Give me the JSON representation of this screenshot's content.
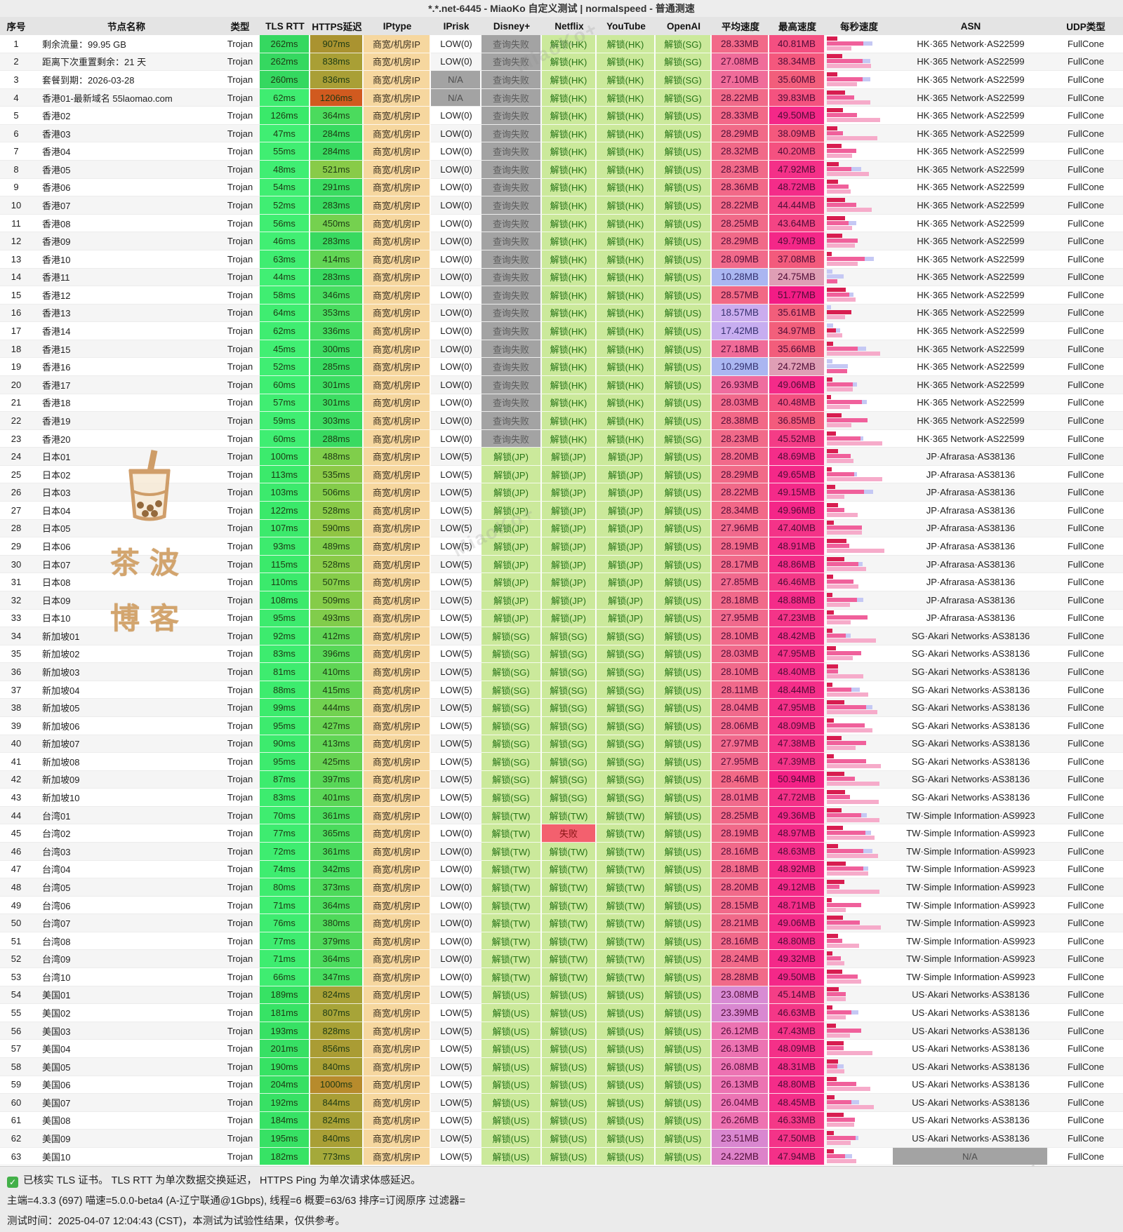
{
  "title": "*.*.net-6445 - MiaoKo 自定义测试 | normalspeed - 普通测速",
  "columns": [
    "序号",
    "节点名称",
    "类型",
    "TLS RTT",
    "HTTPS延迟",
    "IPtype",
    "IPrisk",
    "Disney+",
    "Netflix",
    "YouTube",
    "OpenAI",
    "平均速度",
    "最高速度",
    "每秒速度",
    "ASN",
    "UDP类型"
  ],
  "constants": {
    "type": "Trojan",
    "iptype": "商宽/机房IP",
    "udp": "FullCone",
    "ms_suffix": "ms",
    "mb_suffix": "MB"
  },
  "status_labels": {
    "query_fail": "查询失败",
    "fail": "失败",
    "unlock_prefix": "解锁"
  },
  "colors": {
    "unlock_bg": "#cbe99b",
    "unlock_text": "#267316",
    "queryfail_bg": "#a3a3a3",
    "fail_bg": "#f3606e",
    "iptype_bg": "#f6d79f",
    "na_bg": "#a3a3a3",
    "fast_green": "#3be96e",
    "slow_orange": "#d1591f",
    "avg_pink": "#f16b90",
    "max_magenta": "#f42b89",
    "low_speed_lavender": "#a9b6f1",
    "bar_red": "#d81d50",
    "bar_pink": "#f0609b",
    "bar_lightpink": "#f6abca",
    "bar_lavender": "#c5c8f4"
  },
  "watermark": {
    "line1": "茶波",
    "line2": "博客",
    "brand": "MiaoKo+"
  },
  "footer": {
    "line1": "已核实 TLS 证书。 TLS RTT 为单次数据交换延迟， HTTPS Ping 为单次请求体感延迟。",
    "line2": "主端=4.3.3 (697) 喵速=5.0.0-beta4 (A-辽宁联通@1Gbps), 线程=6 概要=63/63 排序=订阅原序 过滤器=",
    "line3": "测试时间：2025-04-07 12:04:43 (CST)，本测试为试验性结果，仅供参考。"
  },
  "rows": [
    {
      "i": 1,
      "name": "剩余流量：99.95 GB",
      "tls": 262,
      "https": 907,
      "risk": "LOW(0)",
      "dis": "查询失败",
      "nf": "解锁(HK)",
      "yt": "解锁(HK)",
      "oai": "解锁(SG)",
      "avg": 28.33,
      "max": 40.81,
      "asn": "HK·365 Network·AS22599"
    },
    {
      "i": 2,
      "name": "距离下次重置剩余：21 天",
      "tls": 262,
      "https": 838,
      "risk": "LOW(0)",
      "dis": "查询失败",
      "nf": "解锁(HK)",
      "yt": "解锁(HK)",
      "oai": "解锁(SG)",
      "avg": 27.08,
      "max": 38.34,
      "asn": "HK·365 Network·AS22599"
    },
    {
      "i": 3,
      "name": "套餐到期：2026-03-28",
      "tls": 260,
      "https": 836,
      "risk": "N/A",
      "dis": "查询失败",
      "nf": "解锁(HK)",
      "yt": "解锁(HK)",
      "oai": "解锁(SG)",
      "avg": 27.1,
      "max": 35.6,
      "asn": "HK·365 Network·AS22599"
    },
    {
      "i": 4,
      "name": "香港01-最新域名 55laomao.com",
      "tls": 62,
      "https": 1206,
      "risk": "N/A",
      "dis": "查询失败",
      "nf": "解锁(HK)",
      "yt": "解锁(HK)",
      "oai": "解锁(SG)",
      "avg": 28.22,
      "max": 39.83,
      "asn": "HK·365 Network·AS22599"
    },
    {
      "i": 5,
      "name": "香港02",
      "tls": 126,
      "https": 364,
      "risk": "LOW(0)",
      "dis": "查询失败",
      "nf": "解锁(HK)",
      "yt": "解锁(HK)",
      "oai": "解锁(US)",
      "avg": 28.33,
      "max": 49.5,
      "asn": "HK·365 Network·AS22599"
    },
    {
      "i": 6,
      "name": "香港03",
      "tls": 47,
      "https": 284,
      "risk": "LOW(0)",
      "dis": "查询失败",
      "nf": "解锁(HK)",
      "yt": "解锁(HK)",
      "oai": "解锁(US)",
      "avg": 28.29,
      "max": 38.09,
      "asn": "HK·365 Network·AS22599"
    },
    {
      "i": 7,
      "name": "香港04",
      "tls": 55,
      "https": 284,
      "risk": "LOW(0)",
      "dis": "查询失败",
      "nf": "解锁(HK)",
      "yt": "解锁(HK)",
      "oai": "解锁(US)",
      "avg": 28.32,
      "max": 40.2,
      "asn": "HK·365 Network·AS22599"
    },
    {
      "i": 8,
      "name": "香港05",
      "tls": 48,
      "https": 521,
      "risk": "LOW(0)",
      "dis": "查询失败",
      "nf": "解锁(HK)",
      "yt": "解锁(HK)",
      "oai": "解锁(US)",
      "avg": 28.23,
      "max": 47.92,
      "asn": "HK·365 Network·AS22599"
    },
    {
      "i": 9,
      "name": "香港06",
      "tls": 54,
      "https": 291,
      "risk": "LOW(0)",
      "dis": "查询失败",
      "nf": "解锁(HK)",
      "yt": "解锁(HK)",
      "oai": "解锁(US)",
      "avg": 28.36,
      "max": 48.72,
      "asn": "HK·365 Network·AS22599"
    },
    {
      "i": 10,
      "name": "香港07",
      "tls": 52,
      "https": 283,
      "risk": "LOW(0)",
      "dis": "查询失败",
      "nf": "解锁(HK)",
      "yt": "解锁(HK)",
      "oai": "解锁(US)",
      "avg": 28.22,
      "max": 44.44,
      "asn": "HK·365 Network·AS22599"
    },
    {
      "i": 11,
      "name": "香港08",
      "tls": 56,
      "https": 450,
      "risk": "LOW(0)",
      "dis": "查询失败",
      "nf": "解锁(HK)",
      "yt": "解锁(HK)",
      "oai": "解锁(US)",
      "avg": 28.25,
      "max": 43.64,
      "asn": "HK·365 Network·AS22599"
    },
    {
      "i": 12,
      "name": "香港09",
      "tls": 46,
      "https": 283,
      "risk": "LOW(0)",
      "dis": "查询失败",
      "nf": "解锁(HK)",
      "yt": "解锁(HK)",
      "oai": "解锁(US)",
      "avg": 28.29,
      "max": 49.79,
      "asn": "HK·365 Network·AS22599"
    },
    {
      "i": 13,
      "name": "香港10",
      "tls": 63,
      "https": 414,
      "risk": "LOW(0)",
      "dis": "查询失败",
      "nf": "解锁(HK)",
      "yt": "解锁(HK)",
      "oai": "解锁(US)",
      "avg": 28.09,
      "max": 37.08,
      "asn": "HK·365 Network·AS22599"
    },
    {
      "i": 14,
      "name": "香港11",
      "tls": 44,
      "https": 283,
      "risk": "LOW(0)",
      "dis": "查询失败",
      "nf": "解锁(HK)",
      "yt": "解锁(HK)",
      "oai": "解锁(US)",
      "avg": 10.28,
      "max": 24.75,
      "asn": "HK·365 Network·AS22599"
    },
    {
      "i": 15,
      "name": "香港12",
      "tls": 58,
      "https": 346,
      "risk": "LOW(0)",
      "dis": "查询失败",
      "nf": "解锁(HK)",
      "yt": "解锁(HK)",
      "oai": "解锁(US)",
      "avg": 28.57,
      "max": 51.77,
      "asn": "HK·365 Network·AS22599"
    },
    {
      "i": 16,
      "name": "香港13",
      "tls": 64,
      "https": 353,
      "risk": "LOW(0)",
      "dis": "查询失败",
      "nf": "解锁(HK)",
      "yt": "解锁(HK)",
      "oai": "解锁(US)",
      "avg": 18.57,
      "max": 35.61,
      "asn": "HK·365 Network·AS22599"
    },
    {
      "i": 17,
      "name": "香港14",
      "tls": 62,
      "https": 336,
      "risk": "LOW(0)",
      "dis": "查询失败",
      "nf": "解锁(HK)",
      "yt": "解锁(HK)",
      "oai": "解锁(US)",
      "avg": 17.42,
      "max": 34.97,
      "asn": "HK·365 Network·AS22599"
    },
    {
      "i": 18,
      "name": "香港15",
      "tls": 45,
      "https": 300,
      "risk": "LOW(0)",
      "dis": "查询失败",
      "nf": "解锁(HK)",
      "yt": "解锁(HK)",
      "oai": "解锁(US)",
      "avg": 27.18,
      "max": 35.66,
      "asn": "HK·365 Network·AS22599"
    },
    {
      "i": 19,
      "name": "香港16",
      "tls": 52,
      "https": 285,
      "risk": "LOW(0)",
      "dis": "查询失败",
      "nf": "解锁(HK)",
      "yt": "解锁(HK)",
      "oai": "解锁(US)",
      "avg": 10.29,
      "max": 24.72,
      "asn": "HK·365 Network·AS22599"
    },
    {
      "i": 20,
      "name": "香港17",
      "tls": 60,
      "https": 301,
      "risk": "LOW(0)",
      "dis": "查询失败",
      "nf": "解锁(HK)",
      "yt": "解锁(HK)",
      "oai": "解锁(US)",
      "avg": 26.93,
      "max": 49.06,
      "asn": "HK·365 Network·AS22599"
    },
    {
      "i": 21,
      "name": "香港18",
      "tls": 57,
      "https": 301,
      "risk": "LOW(0)",
      "dis": "查询失败",
      "nf": "解锁(HK)",
      "yt": "解锁(HK)",
      "oai": "解锁(US)",
      "avg": 28.03,
      "max": 40.48,
      "asn": "HK·365 Network·AS22599"
    },
    {
      "i": 22,
      "name": "香港19",
      "tls": 59,
      "https": 303,
      "risk": "LOW(0)",
      "dis": "查询失败",
      "nf": "解锁(HK)",
      "yt": "解锁(HK)",
      "oai": "解锁(US)",
      "avg": 28.38,
      "max": 36.85,
      "asn": "HK·365 Network·AS22599"
    },
    {
      "i": 23,
      "name": "香港20",
      "tls": 60,
      "https": 288,
      "risk": "LOW(0)",
      "dis": "查询失败",
      "nf": "解锁(HK)",
      "yt": "解锁(HK)",
      "oai": "解锁(SG)",
      "avg": 28.23,
      "max": 45.52,
      "asn": "HK·365 Network·AS22599"
    },
    {
      "i": 24,
      "name": "日本01",
      "tls": 100,
      "https": 488,
      "risk": "LOW(5)",
      "dis": "解锁(JP)",
      "nf": "解锁(JP)",
      "yt": "解锁(JP)",
      "oai": "解锁(US)",
      "avg": 28.2,
      "max": 48.69,
      "asn": "JP·Afrarasa·AS38136"
    },
    {
      "i": 25,
      "name": "日本02",
      "tls": 113,
      "https": 535,
      "risk": "LOW(5)",
      "dis": "解锁(JP)",
      "nf": "解锁(JP)",
      "yt": "解锁(JP)",
      "oai": "解锁(US)",
      "avg": 28.29,
      "max": 49.65,
      "asn": "JP·Afrarasa·AS38136"
    },
    {
      "i": 26,
      "name": "日本03",
      "tls": 103,
      "https": 506,
      "risk": "LOW(5)",
      "dis": "解锁(JP)",
      "nf": "解锁(JP)",
      "yt": "解锁(JP)",
      "oai": "解锁(US)",
      "avg": 28.22,
      "max": 49.15,
      "asn": "JP·Afrarasa·AS38136"
    },
    {
      "i": 27,
      "name": "日本04",
      "tls": 122,
      "https": 528,
      "risk": "LOW(5)",
      "dis": "解锁(JP)",
      "nf": "解锁(JP)",
      "yt": "解锁(JP)",
      "oai": "解锁(US)",
      "avg": 28.34,
      "max": 49.96,
      "asn": "JP·Afrarasa·AS38136"
    },
    {
      "i": 28,
      "name": "日本05",
      "tls": 107,
      "https": 590,
      "risk": "LOW(5)",
      "dis": "解锁(JP)",
      "nf": "解锁(JP)",
      "yt": "解锁(JP)",
      "oai": "解锁(US)",
      "avg": 27.96,
      "max": 47.4,
      "asn": "JP·Afrarasa·AS38136"
    },
    {
      "i": 29,
      "name": "日本06",
      "tls": 93,
      "https": 489,
      "risk": "LOW(5)",
      "dis": "解锁(JP)",
      "nf": "解锁(JP)",
      "yt": "解锁(JP)",
      "oai": "解锁(US)",
      "avg": 28.19,
      "max": 48.91,
      "asn": "JP·Afrarasa·AS38136"
    },
    {
      "i": 30,
      "name": "日本07",
      "tls": 115,
      "https": 528,
      "risk": "LOW(5)",
      "dis": "解锁(JP)",
      "nf": "解锁(JP)",
      "yt": "解锁(JP)",
      "oai": "解锁(US)",
      "avg": 28.17,
      "max": 48.86,
      "asn": "JP·Afrarasa·AS38136"
    },
    {
      "i": 31,
      "name": "日本08",
      "tls": 110,
      "https": 507,
      "risk": "LOW(5)",
      "dis": "解锁(JP)",
      "nf": "解锁(JP)",
      "yt": "解锁(JP)",
      "oai": "解锁(US)",
      "avg": 27.85,
      "max": 46.46,
      "asn": "JP·Afrarasa·AS38136"
    },
    {
      "i": 32,
      "name": "日本09",
      "tls": 108,
      "https": 509,
      "risk": "LOW(5)",
      "dis": "解锁(JP)",
      "nf": "解锁(JP)",
      "yt": "解锁(JP)",
      "oai": "解锁(US)",
      "avg": 28.18,
      "max": 48.88,
      "asn": "JP·Afrarasa·AS38136"
    },
    {
      "i": 33,
      "name": "日本10",
      "tls": 95,
      "https": 493,
      "risk": "LOW(5)",
      "dis": "解锁(JP)",
      "nf": "解锁(JP)",
      "yt": "解锁(JP)",
      "oai": "解锁(US)",
      "avg": 27.95,
      "max": 47.23,
      "asn": "JP·Afrarasa·AS38136"
    },
    {
      "i": 34,
      "name": "新加坡01",
      "tls": 92,
      "https": 412,
      "risk": "LOW(5)",
      "dis": "解锁(SG)",
      "nf": "解锁(SG)",
      "yt": "解锁(SG)",
      "oai": "解锁(US)",
      "avg": 28.1,
      "max": 48.42,
      "asn": "SG·Akari Networks·AS38136"
    },
    {
      "i": 35,
      "name": "新加坡02",
      "tls": 83,
      "https": 396,
      "risk": "LOW(5)",
      "dis": "解锁(SG)",
      "nf": "解锁(SG)",
      "yt": "解锁(SG)",
      "oai": "解锁(US)",
      "avg": 28.03,
      "max": 47.95,
      "asn": "SG·Akari Networks·AS38136"
    },
    {
      "i": 36,
      "name": "新加坡03",
      "tls": 81,
      "https": 410,
      "risk": "LOW(5)",
      "dis": "解锁(SG)",
      "nf": "解锁(SG)",
      "yt": "解锁(SG)",
      "oai": "解锁(US)",
      "avg": 28.1,
      "max": 48.4,
      "asn": "SG·Akari Networks·AS38136"
    },
    {
      "i": 37,
      "name": "新加坡04",
      "tls": 88,
      "https": 415,
      "risk": "LOW(5)",
      "dis": "解锁(SG)",
      "nf": "解锁(SG)",
      "yt": "解锁(SG)",
      "oai": "解锁(US)",
      "avg": 28.11,
      "max": 48.44,
      "asn": "SG·Akari Networks·AS38136"
    },
    {
      "i": 38,
      "name": "新加坡05",
      "tls": 99,
      "https": 444,
      "risk": "LOW(5)",
      "dis": "解锁(SG)",
      "nf": "解锁(SG)",
      "yt": "解锁(SG)",
      "oai": "解锁(US)",
      "avg": 28.04,
      "max": 47.95,
      "asn": "SG·Akari Networks·AS38136"
    },
    {
      "i": 39,
      "name": "新加坡06",
      "tls": 95,
      "https": 427,
      "risk": "LOW(5)",
      "dis": "解锁(SG)",
      "nf": "解锁(SG)",
      "yt": "解锁(SG)",
      "oai": "解锁(US)",
      "avg": 28.06,
      "max": 48.09,
      "asn": "SG·Akari Networks·AS38136"
    },
    {
      "i": 40,
      "name": "新加坡07",
      "tls": 90,
      "https": 413,
      "risk": "LOW(5)",
      "dis": "解锁(SG)",
      "nf": "解锁(SG)",
      "yt": "解锁(SG)",
      "oai": "解锁(US)",
      "avg": 27.97,
      "max": 47.38,
      "asn": "SG·Akari Networks·AS38136"
    },
    {
      "i": 41,
      "name": "新加坡08",
      "tls": 95,
      "https": 425,
      "risk": "LOW(5)",
      "dis": "解锁(SG)",
      "nf": "解锁(SG)",
      "yt": "解锁(SG)",
      "oai": "解锁(US)",
      "avg": 27.95,
      "max": 47.39,
      "asn": "SG·Akari Networks·AS38136"
    },
    {
      "i": 42,
      "name": "新加坡09",
      "tls": 87,
      "https": 397,
      "risk": "LOW(5)",
      "dis": "解锁(SG)",
      "nf": "解锁(SG)",
      "yt": "解锁(SG)",
      "oai": "解锁(US)",
      "avg": 28.46,
      "max": 50.94,
      "asn": "SG·Akari Networks·AS38136"
    },
    {
      "i": 43,
      "name": "新加坡10",
      "tls": 83,
      "https": 401,
      "risk": "LOW(5)",
      "dis": "解锁(SG)",
      "nf": "解锁(SG)",
      "yt": "解锁(SG)",
      "oai": "解锁(US)",
      "avg": 28.01,
      "max": 47.72,
      "asn": "SG·Akari Networks·AS38136"
    },
    {
      "i": 44,
      "name": "台湾01",
      "tls": 70,
      "https": 361,
      "risk": "LOW(0)",
      "dis": "解锁(TW)",
      "nf": "解锁(TW)",
      "yt": "解锁(TW)",
      "oai": "解锁(US)",
      "avg": 28.25,
      "max": 49.36,
      "asn": "TW·Simple Information·AS9923"
    },
    {
      "i": 45,
      "name": "台湾02",
      "tls": 77,
      "https": 365,
      "risk": "LOW(0)",
      "dis": "解锁(TW)",
      "nf": "失败",
      "yt": "解锁(TW)",
      "oai": "解锁(US)",
      "avg": 28.19,
      "max": 48.97,
      "asn": "TW·Simple Information·AS9923"
    },
    {
      "i": 46,
      "name": "台湾03",
      "tls": 72,
      "https": 361,
      "risk": "LOW(0)",
      "dis": "解锁(TW)",
      "nf": "解锁(TW)",
      "yt": "解锁(TW)",
      "oai": "解锁(US)",
      "avg": 28.16,
      "max": 48.63,
      "asn": "TW·Simple Information·AS9923"
    },
    {
      "i": 47,
      "name": "台湾04",
      "tls": 74,
      "https": 342,
      "risk": "LOW(0)",
      "dis": "解锁(TW)",
      "nf": "解锁(TW)",
      "yt": "解锁(TW)",
      "oai": "解锁(US)",
      "avg": 28.18,
      "max": 48.92,
      "asn": "TW·Simple Information·AS9923"
    },
    {
      "i": 48,
      "name": "台湾05",
      "tls": 80,
      "https": 373,
      "risk": "LOW(0)",
      "dis": "解锁(TW)",
      "nf": "解锁(TW)",
      "yt": "解锁(TW)",
      "oai": "解锁(US)",
      "avg": 28.2,
      "max": 49.12,
      "asn": "TW·Simple Information·AS9923"
    },
    {
      "i": 49,
      "name": "台湾06",
      "tls": 71,
      "https": 364,
      "risk": "LOW(0)",
      "dis": "解锁(TW)",
      "nf": "解锁(TW)",
      "yt": "解锁(TW)",
      "oai": "解锁(US)",
      "avg": 28.15,
      "max": 48.71,
      "asn": "TW·Simple Information·AS9923"
    },
    {
      "i": 50,
      "name": "台湾07",
      "tls": 76,
      "https": 380,
      "risk": "LOW(0)",
      "dis": "解锁(TW)",
      "nf": "解锁(TW)",
      "yt": "解锁(TW)",
      "oai": "解锁(US)",
      "avg": 28.21,
      "max": 49.06,
      "asn": "TW·Simple Information·AS9923"
    },
    {
      "i": 51,
      "name": "台湾08",
      "tls": 77,
      "https": 379,
      "risk": "LOW(0)",
      "dis": "解锁(TW)",
      "nf": "解锁(TW)",
      "yt": "解锁(TW)",
      "oai": "解锁(US)",
      "avg": 28.16,
      "max": 48.8,
      "asn": "TW·Simple Information·AS9923"
    },
    {
      "i": 52,
      "name": "台湾09",
      "tls": 71,
      "https": 364,
      "risk": "LOW(0)",
      "dis": "解锁(TW)",
      "nf": "解锁(TW)",
      "yt": "解锁(TW)",
      "oai": "解锁(US)",
      "avg": 28.24,
      "max": 49.32,
      "asn": "TW·Simple Information·AS9923"
    },
    {
      "i": 53,
      "name": "台湾10",
      "tls": 66,
      "https": 347,
      "risk": "LOW(0)",
      "dis": "解锁(TW)",
      "nf": "解锁(TW)",
      "yt": "解锁(TW)",
      "oai": "解锁(US)",
      "avg": 28.28,
      "max": 49.5,
      "asn": "TW·Simple Information·AS9923"
    },
    {
      "i": 54,
      "name": "美国01",
      "tls": 189,
      "https": 824,
      "risk": "LOW(5)",
      "dis": "解锁(US)",
      "nf": "解锁(US)",
      "yt": "解锁(US)",
      "oai": "解锁(US)",
      "avg": 23.08,
      "max": 45.14,
      "asn": "US·Akari Networks·AS38136"
    },
    {
      "i": 55,
      "name": "美国02",
      "tls": 181,
      "https": 807,
      "risk": "LOW(5)",
      "dis": "解锁(US)",
      "nf": "解锁(US)",
      "yt": "解锁(US)",
      "oai": "解锁(US)",
      "avg": 23.39,
      "max": 46.63,
      "asn": "US·Akari Networks·AS38136"
    },
    {
      "i": 56,
      "name": "美国03",
      "tls": 193,
      "https": 828,
      "risk": "LOW(5)",
      "dis": "解锁(US)",
      "nf": "解锁(US)",
      "yt": "解锁(US)",
      "oai": "解锁(US)",
      "avg": 26.12,
      "max": 47.43,
      "asn": "US·Akari Networks·AS38136"
    },
    {
      "i": 57,
      "name": "美国04",
      "tls": 201,
      "https": 856,
      "risk": "LOW(5)",
      "dis": "解锁(US)",
      "nf": "解锁(US)",
      "yt": "解锁(US)",
      "oai": "解锁(US)",
      "avg": 26.13,
      "max": 48.09,
      "asn": "US·Akari Networks·AS38136"
    },
    {
      "i": 58,
      "name": "美国05",
      "tls": 190,
      "https": 840,
      "risk": "LOW(5)",
      "dis": "解锁(US)",
      "nf": "解锁(US)",
      "yt": "解锁(US)",
      "oai": "解锁(US)",
      "avg": 26.08,
      "max": 48.31,
      "asn": "US·Akari Networks·AS38136"
    },
    {
      "i": 59,
      "name": "美国06",
      "tls": 204,
      "https": 1000,
      "risk": "LOW(5)",
      "dis": "解锁(US)",
      "nf": "解锁(US)",
      "yt": "解锁(US)",
      "oai": "解锁(US)",
      "avg": 26.13,
      "max": 48.8,
      "asn": "US·Akari Networks·AS38136"
    },
    {
      "i": 60,
      "name": "美国07",
      "tls": 192,
      "https": 844,
      "risk": "LOW(5)",
      "dis": "解锁(US)",
      "nf": "解锁(US)",
      "yt": "解锁(US)",
      "oai": "解锁(US)",
      "avg": 26.04,
      "max": 48.45,
      "asn": "US·Akari Networks·AS38136"
    },
    {
      "i": 61,
      "name": "美国08",
      "tls": 184,
      "https": 824,
      "risk": "LOW(5)",
      "dis": "解锁(US)",
      "nf": "解锁(US)",
      "yt": "解锁(US)",
      "oai": "解锁(US)",
      "avg": 26.26,
      "max": 46.33,
      "asn": "US·Akari Networks·AS38136"
    },
    {
      "i": 62,
      "name": "美国09",
      "tls": 195,
      "https": 840,
      "risk": "LOW(5)",
      "dis": "解锁(US)",
      "nf": "解锁(US)",
      "yt": "解锁(US)",
      "oai": "解锁(US)",
      "avg": 23.51,
      "max": 47.5,
      "asn": "US·Akari Networks·AS38136"
    },
    {
      "i": 63,
      "name": "美国10",
      "tls": 182,
      "https": 773,
      "risk": "LOW(5)",
      "dis": "解锁(US)",
      "nf": "解锁(US)",
      "yt": "解锁(US)",
      "oai": "解锁(US)",
      "avg": 24.22,
      "max": 47.94,
      "asn": "N/A"
    }
  ]
}
